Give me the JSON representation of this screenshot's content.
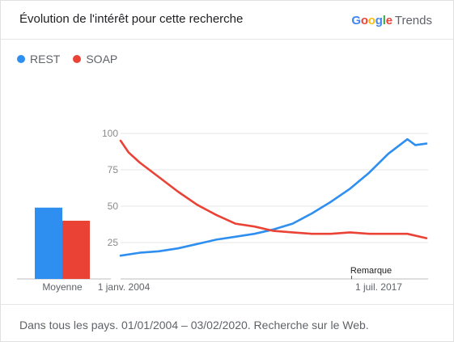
{
  "header": {
    "title": "Évolution de l'intérêt pour cette recherche",
    "brand_google": [
      "G",
      "o",
      "o",
      "g",
      "l",
      "e"
    ],
    "brand_google_colors": [
      "#4285f4",
      "#ea4335",
      "#fbbc05",
      "#4285f4",
      "#34a853",
      "#ea4335"
    ],
    "brand_trends": "Trends"
  },
  "footer": {
    "text": "Dans tous les pays. 01/01/2004 – 03/02/2020. Recherche sur le Web."
  },
  "chart_data": {
    "type": "line",
    "title": "",
    "legend_position": "top-left",
    "series": [
      {
        "name": "REST",
        "color": "#2e8ff0",
        "average": 49,
        "points": [
          [
            "2004-01",
            16
          ],
          [
            "2005-01",
            18
          ],
          [
            "2006-01",
            19
          ],
          [
            "2007-01",
            21
          ],
          [
            "2008-01",
            24
          ],
          [
            "2009-01",
            27
          ],
          [
            "2010-01",
            29
          ],
          [
            "2011-01",
            31
          ],
          [
            "2012-01",
            34
          ],
          [
            "2013-01",
            38
          ],
          [
            "2014-01",
            45
          ],
          [
            "2015-01",
            53
          ],
          [
            "2016-01",
            62
          ],
          [
            "2017-01",
            73
          ],
          [
            "2018-01",
            86
          ],
          [
            "2019-01",
            96
          ],
          [
            "2019-06",
            92
          ],
          [
            "2020-01",
            93
          ]
        ]
      },
      {
        "name": "SOAP",
        "color": "#ea4335",
        "average": 40,
        "points": [
          [
            "2004-01",
            95
          ],
          [
            "2004-06",
            87
          ],
          [
            "2005-01",
            80
          ],
          [
            "2006-01",
            70
          ],
          [
            "2007-01",
            60
          ],
          [
            "2008-01",
            51
          ],
          [
            "2009-01",
            44
          ],
          [
            "2010-01",
            38
          ],
          [
            "2011-01",
            36
          ],
          [
            "2012-01",
            33
          ],
          [
            "2013-01",
            32
          ],
          [
            "2014-01",
            31
          ],
          [
            "2015-01",
            31
          ],
          [
            "2016-01",
            32
          ],
          [
            "2017-01",
            31
          ],
          [
            "2018-01",
            31
          ],
          [
            "2019-01",
            31
          ],
          [
            "2020-01",
            28
          ]
        ]
      }
    ],
    "y_ticks": [
      25,
      50,
      75,
      100
    ],
    "ylim": [
      0,
      100
    ],
    "x_tick_labels": [
      {
        "date": "2004-01",
        "label": "1 janv. 2004"
      },
      {
        "date": "2017-07",
        "label": "1 juil. 2017"
      }
    ],
    "x_range": [
      "2004-01",
      "2020-02"
    ],
    "average_label": "Moyenne",
    "annotation": {
      "date": "2016-02",
      "label": "Remarque"
    },
    "grid": true
  }
}
